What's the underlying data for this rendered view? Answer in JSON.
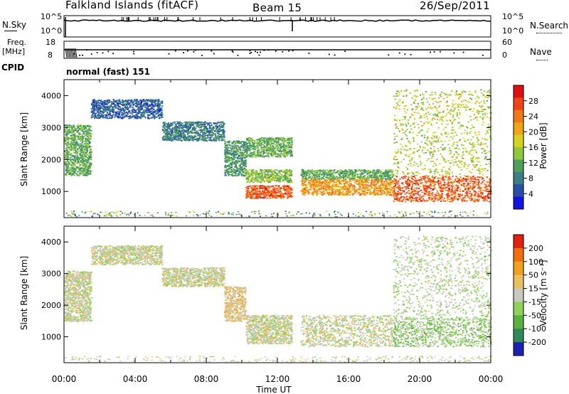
{
  "header": {
    "station": "Falkland Islands (fitACF)",
    "beam": "Beam 15",
    "date": "26/Sep/2011"
  },
  "strip_labels": {
    "nsky": "N.Sky",
    "nsky_ticks": [
      "10^5",
      "10^0"
    ],
    "nsearch": "N.Search",
    "nsearch_ticks": [
      "10^5",
      "10^0"
    ],
    "freq_label_1": "Freq.",
    "freq_label_2": "[MHz]",
    "freq_ticks": [
      "18",
      "8"
    ],
    "nave": "Nave",
    "nave_ticks": [
      "60",
      "0"
    ],
    "cpid": "CPID",
    "cpid_value": "normal (fast) 151"
  },
  "axes": {
    "ylabel": "Slant Range [km]",
    "xlabel": "Time UT",
    "y_ticks": [
      "1000",
      "2000",
      "3000",
      "4000"
    ],
    "x_ticks": [
      "00:00",
      "04:00",
      "08:00",
      "12:00",
      "16:00",
      "20:00",
      "00:00"
    ]
  },
  "colorbars": {
    "power": {
      "label": "Power [dB]",
      "ticks": [
        "4",
        "8",
        "12",
        "16",
        "20",
        "24",
        "28"
      ],
      "colors": [
        "#1414e0",
        "#2a4fa8",
        "#3a7f86",
        "#4f9f5a",
        "#8ec83a",
        "#d8d020",
        "#f0a418",
        "#f07818",
        "#f04414",
        "#e01010"
      ]
    },
    "velocity": {
      "label": "Velocity [m s⁻¹]",
      "ticks": [
        "200",
        "100",
        "50",
        "15",
        "-15",
        "-50",
        "-100",
        "-200"
      ],
      "colors": [
        "#2020b0",
        "#2e8a5a",
        "#5ab040",
        "#8ed25a",
        "#c8c8c0",
        "#e8c060",
        "#f0a020",
        "#f07010",
        "#e02010"
      ]
    }
  },
  "chart_data": [
    {
      "type": "heatmap",
      "title": "Power",
      "xlabel": "Time UT",
      "ylabel": "Slant Range [km]",
      "x_range": [
        "00:00",
        "24:00"
      ],
      "ylim": [
        180,
        4500
      ],
      "colorbar_label": "Power [dB]",
      "colorbar_range": [
        0,
        32
      ],
      "scatter_bands": [
        {
          "t_start": 0.0,
          "t_end": 1.5,
          "r_min": 1500,
          "r_max": 3100,
          "value": 12
        },
        {
          "t_start": 1.5,
          "t_end": 5.5,
          "r_min": 3300,
          "r_max": 3900,
          "value": 6
        },
        {
          "t_start": 5.5,
          "t_end": 9.0,
          "r_min": 2600,
          "r_max": 3200,
          "value": 8
        },
        {
          "t_start": 9.0,
          "t_end": 10.2,
          "r_min": 1500,
          "r_max": 2600,
          "value": 10
        },
        {
          "t_start": 10.2,
          "t_end": 12.8,
          "r_min": 800,
          "r_max": 1200,
          "value": 26
        },
        {
          "t_start": 10.2,
          "t_end": 12.8,
          "r_min": 1300,
          "r_max": 1700,
          "value": 14
        },
        {
          "t_start": 10.2,
          "t_end": 12.8,
          "r_min": 2100,
          "r_max": 2700,
          "value": 12
        },
        {
          "t_start": 13.3,
          "t_end": 18.5,
          "r_min": 900,
          "r_max": 1400,
          "value": 22
        },
        {
          "t_start": 13.3,
          "t_end": 18.5,
          "r_min": 1400,
          "r_max": 1700,
          "value": 12
        },
        {
          "t_start": 18.5,
          "t_end": 24.0,
          "r_min": 700,
          "r_max": 1500,
          "value": 26
        },
        {
          "t_start": 18.5,
          "t_end": 24.0,
          "r_min": 1500,
          "r_max": 4200,
          "value": 16
        }
      ]
    },
    {
      "type": "heatmap",
      "title": "Velocity",
      "xlabel": "Time UT",
      "ylabel": "Slant Range [km]",
      "x_range": [
        "00:00",
        "24:00"
      ],
      "ylim": [
        180,
        4500
      ],
      "colorbar_label": "Velocity [m s⁻¹]",
      "colorbar_range": [
        -200,
        200
      ],
      "scatter_bands": [
        {
          "t_start": 0.0,
          "t_end": 1.5,
          "r_min": 1500,
          "r_max": 3100,
          "value": 0
        },
        {
          "t_start": 1.5,
          "t_end": 5.5,
          "r_min": 3300,
          "r_max": 3900,
          "value": 0
        },
        {
          "t_start": 5.5,
          "t_end": 9.0,
          "r_min": 2600,
          "r_max": 3200,
          "value": 0
        },
        {
          "t_start": 9.0,
          "t_end": 10.2,
          "r_min": 1500,
          "r_max": 2600,
          "value": 30
        },
        {
          "t_start": 10.2,
          "t_end": 12.8,
          "r_min": 800,
          "r_max": 1700,
          "value": 0
        },
        {
          "t_start": 13.3,
          "t_end": 18.5,
          "r_min": 700,
          "r_max": 1700,
          "value": 0
        },
        {
          "t_start": 18.5,
          "t_end": 24.0,
          "r_min": 700,
          "r_max": 1600,
          "value": -40
        },
        {
          "t_start": 18.5,
          "t_end": 24.0,
          "r_min": 1600,
          "r_max": 4200,
          "value": -20
        }
      ]
    }
  ]
}
